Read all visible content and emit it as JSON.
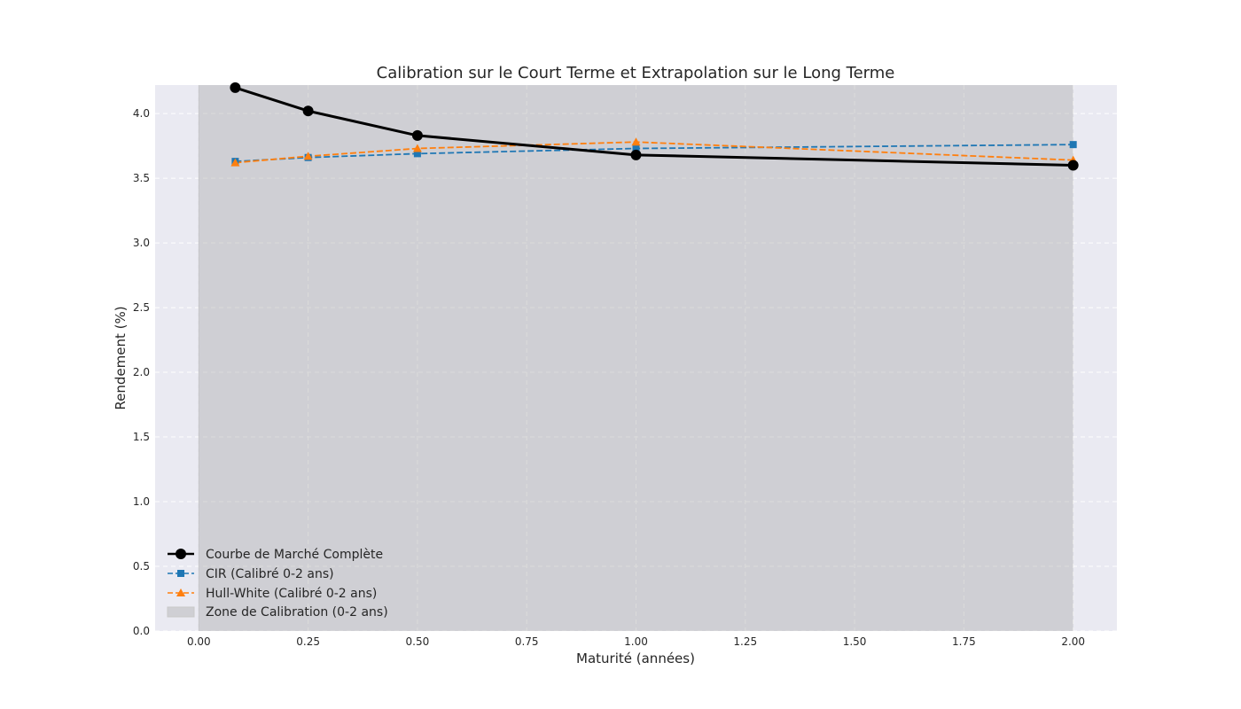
{
  "chart_data": {
    "type": "line",
    "title": "Calibration sur le Court Terme et Extrapolation sur le Long Terme",
    "xlabel": "Maturité (années)",
    "ylabel": "Rendement (%)",
    "xlim": [
      -0.1,
      2.1
    ],
    "ylim": [
      0.0,
      4.22
    ],
    "xticks": [
      0.0,
      0.25,
      0.5,
      0.75,
      1.0,
      1.25,
      1.5,
      1.75,
      2.0
    ],
    "xtick_labels": [
      "0.00",
      "0.25",
      "0.50",
      "0.75",
      "1.00",
      "1.25",
      "1.50",
      "1.75",
      "2.00"
    ],
    "yticks": [
      0.0,
      0.5,
      1.0,
      1.5,
      2.0,
      2.5,
      3.0,
      3.5,
      4.0
    ],
    "ytick_labels": [
      "0.0",
      "0.5",
      "1.0",
      "1.5",
      "2.0",
      "2.5",
      "3.0",
      "3.5",
      "4.0"
    ],
    "grid": true,
    "legend_position": "lower-left",
    "x": [
      0.0833,
      0.25,
      0.5,
      1.0,
      2.0
    ],
    "series": [
      {
        "name": "Courbe de Marché Complète",
        "values": [
          4.2,
          4.02,
          3.83,
          3.68,
          3.6
        ],
        "color": "#000000",
        "style": "solid",
        "marker": "circle"
      },
      {
        "name": "CIR (Calibré 0-2 ans)",
        "values": [
          3.63,
          3.66,
          3.69,
          3.73,
          3.76
        ],
        "color": "#1f77b4",
        "style": "dashed",
        "marker": "square"
      },
      {
        "name": "Hull-White (Calibré 0-2 ans)",
        "values": [
          3.62,
          3.67,
          3.73,
          3.78,
          3.64
        ],
        "color": "#ff7f0e",
        "style": "dashed",
        "marker": "triangle"
      }
    ],
    "shaded_region": {
      "name": "Zone de Calibration (0-2 ans)",
      "x_range": [
        0.0,
        2.0
      ],
      "color": "#b0b0b0"
    },
    "colors": {
      "plot_background": "#eaeaf2",
      "grid": "#ffffff"
    }
  }
}
